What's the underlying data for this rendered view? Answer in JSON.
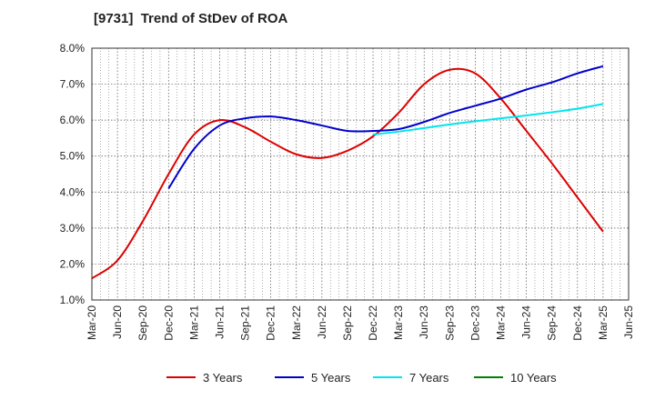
{
  "chart_data": {
    "type": "line",
    "title": "[9731]  Trend of StDev of ROA",
    "xlabel": "",
    "ylabel": "",
    "x_ticks": [
      "Mar-20",
      "Jun-20",
      "Sep-20",
      "Dec-20",
      "Mar-21",
      "Jun-21",
      "Sep-21",
      "Dec-21",
      "Mar-22",
      "Jun-22",
      "Sep-22",
      "Dec-22",
      "Mar-23",
      "Jun-23",
      "Sep-23",
      "Dec-23",
      "Mar-24",
      "Jun-24",
      "Sep-24",
      "Dec-24",
      "Mar-25",
      "Jun-25"
    ],
    "y_ticks": [
      "1.0%",
      "2.0%",
      "3.0%",
      "4.0%",
      "5.0%",
      "6.0%",
      "7.0%",
      "8.0%"
    ],
    "ylim": [
      1.0,
      8.0
    ],
    "grid": true,
    "legend_position": "bottom",
    "series": [
      {
        "name": "3 Years",
        "color": "#dd0000",
        "x": [
          "Mar-20",
          "Jun-20",
          "Sep-20",
          "Dec-20",
          "Mar-21",
          "Jun-21",
          "Sep-21",
          "Dec-21",
          "Mar-22",
          "Jun-22",
          "Sep-22",
          "Dec-22",
          "Mar-23",
          "Jun-23",
          "Sep-23",
          "Dec-23",
          "Mar-24",
          "Jun-24",
          "Sep-24",
          "Dec-24",
          "Mar-25"
        ],
        "values": [
          1.6,
          2.1,
          3.2,
          4.5,
          5.6,
          6.0,
          5.8,
          5.4,
          5.05,
          4.95,
          5.15,
          5.55,
          6.2,
          7.0,
          7.4,
          7.3,
          6.6,
          5.7,
          4.8,
          3.85,
          2.9
        ]
      },
      {
        "name": "5 Years",
        "color": "#0000cc",
        "x": [
          "Dec-20",
          "Mar-21",
          "Jun-21",
          "Sep-21",
          "Dec-21",
          "Mar-22",
          "Jun-22",
          "Sep-22",
          "Dec-22",
          "Mar-23",
          "Jun-23",
          "Sep-23",
          "Dec-23",
          "Mar-24",
          "Jun-24",
          "Sep-24",
          "Dec-24",
          "Mar-25"
        ],
        "values": [
          4.1,
          5.2,
          5.85,
          6.05,
          6.1,
          6.0,
          5.85,
          5.7,
          5.7,
          5.75,
          5.95,
          6.2,
          6.4,
          6.6,
          6.85,
          7.05,
          7.3,
          7.5
        ]
      },
      {
        "name": "7 Years",
        "color": "#00e5ee",
        "x": [
          "Dec-22",
          "Mar-23",
          "Jun-23",
          "Sep-23",
          "Dec-23",
          "Mar-24",
          "Jun-24",
          "Sep-24",
          "Dec-24",
          "Mar-25"
        ],
        "values": [
          5.6,
          5.68,
          5.78,
          5.88,
          5.97,
          6.05,
          6.13,
          6.22,
          6.32,
          6.45
        ]
      },
      {
        "name": "10 Years",
        "color": "#008000",
        "x": [],
        "values": []
      }
    ]
  }
}
